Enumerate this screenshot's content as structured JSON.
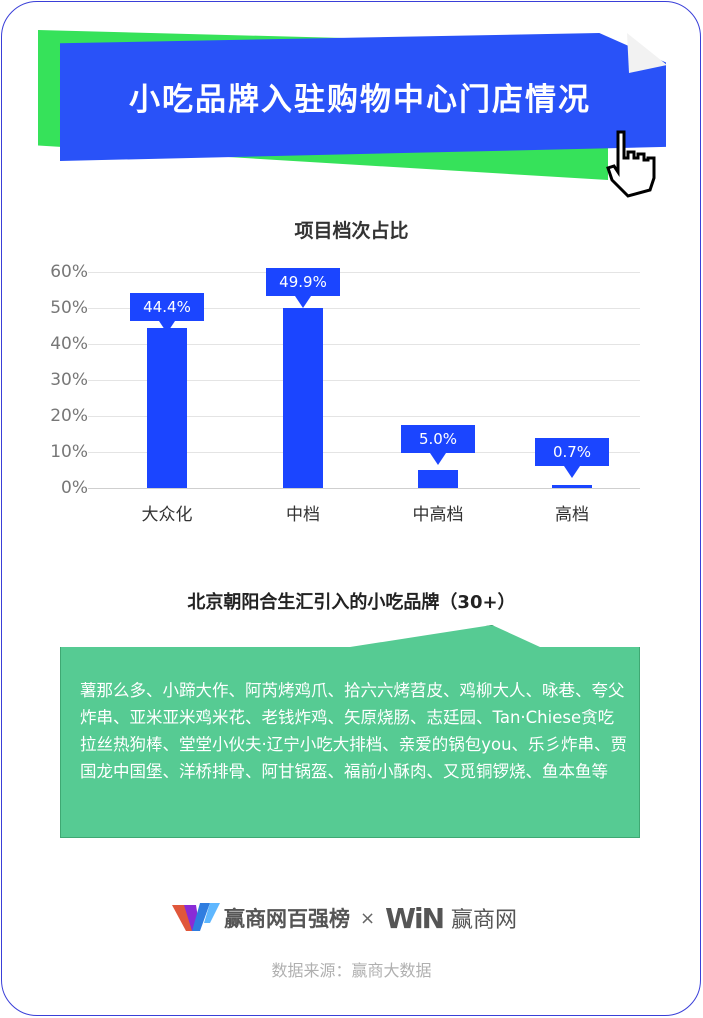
{
  "banner": {
    "title": "小吃品牌入驻购物中心门店情况"
  },
  "chart_data": {
    "type": "bar",
    "title": "项目档次占比",
    "categories": [
      "大众化",
      "中档",
      "中高档",
      "高档"
    ],
    "values": [
      44.4,
      49.9,
      5.0,
      0.7
    ],
    "value_labels": [
      "44.4%",
      "49.9%",
      "5.0%",
      "0.7%"
    ],
    "yticks": [
      "60%",
      "50%",
      "40%",
      "30%",
      "20%",
      "10%",
      "0%"
    ],
    "ylim": [
      0,
      60
    ],
    "xlabel": "",
    "ylabel": "",
    "grid": true,
    "color": "#1b45ff"
  },
  "brands": {
    "title": "北京朝阳合生汇引入的小吃品牌（30+）",
    "text": "薯那么多、小蹄大作、阿芮烤鸡爪、拾六六烤苕皮、鸡柳大人、咏巷、夸父炸串、亚米亚米鸡米花、老钱炸鸡、矢原烧肠、志廷园、Tan·Chiese贪吃拉丝热狗棒、堂堂小伙夫·辽宁小吃大排档、亲爱的锅包you、乐彡炸串、贾国龙中国堡、洋桥排骨、阿甘锅盔、福前小酥肉、又觅铜锣烧、鱼本鱼等"
  },
  "footer": {
    "logo1_text": "赢商网百强榜",
    "times": "×",
    "logo2_mark": "WiN",
    "logo2_text": "赢商网",
    "source": "数据来源：赢商大数据"
  }
}
